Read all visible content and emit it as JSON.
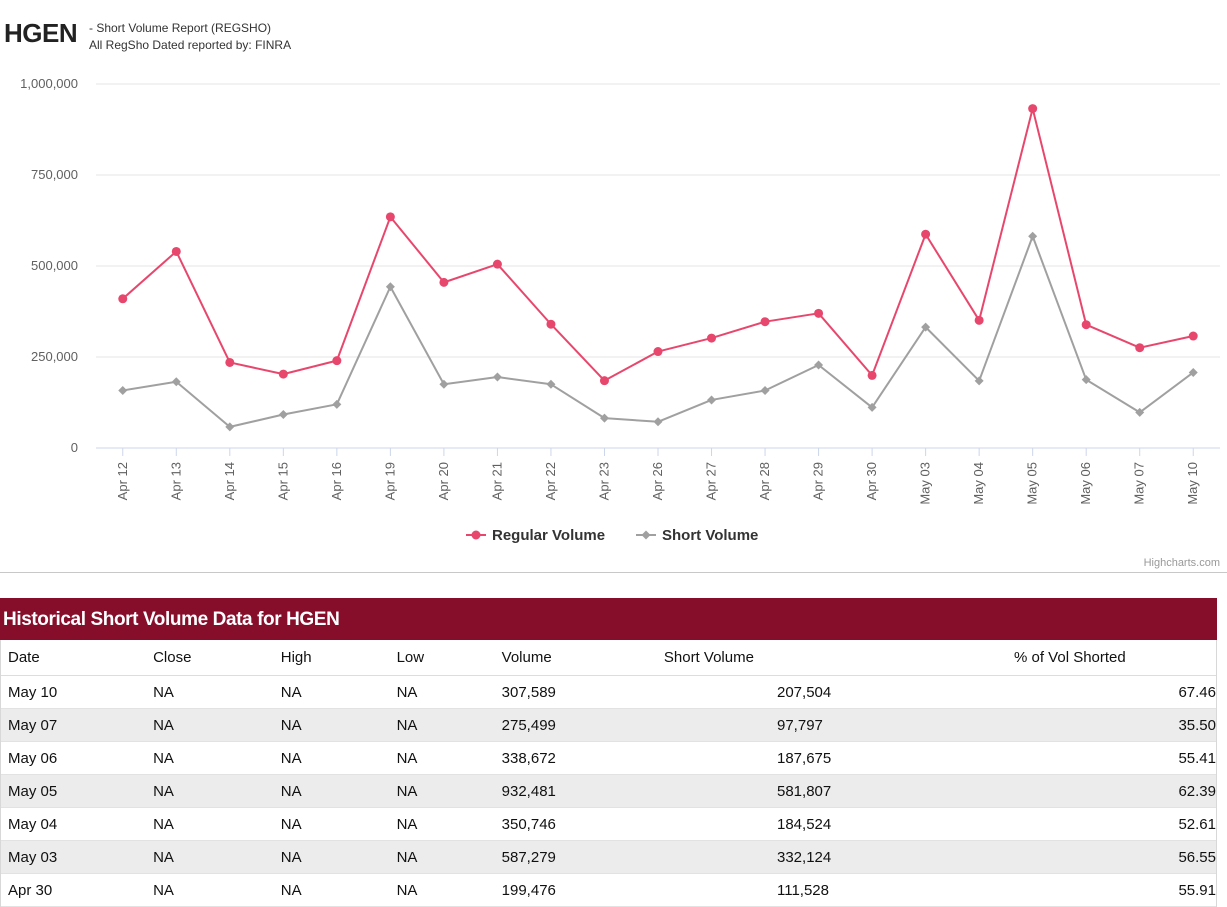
{
  "header": {
    "ticker": "HGEN",
    "subtitle_line1": "- Short Volume Report  (REGSHO)",
    "subtitle_line2": "All RegSho Dated reported by: FINRA"
  },
  "colors": {
    "regular": "#e8476d",
    "short": "#a0a0a0",
    "table_header_bg": "#870e2b"
  },
  "chart_data": {
    "type": "line",
    "categories": [
      "Apr 12",
      "Apr 13",
      "Apr 14",
      "Apr 15",
      "Apr 16",
      "Apr 19",
      "Apr 20",
      "Apr 21",
      "Apr 22",
      "Apr 23",
      "Apr 26",
      "Apr 27",
      "Apr 28",
      "Apr 29",
      "Apr 30",
      "May 03",
      "May 04",
      "May 05",
      "May 06",
      "May 07",
      "May 10"
    ],
    "series": [
      {
        "name": "Regular Volume",
        "marker": "circle",
        "values": [
          410000,
          540000,
          235000,
          203000,
          240000,
          635000,
          455000,
          505000,
          340000,
          185000,
          265000,
          302000,
          347000,
          370000,
          199476,
          587279,
          350746,
          932481,
          338672,
          275499,
          307589
        ]
      },
      {
        "name": "Short Volume",
        "marker": "diamond",
        "values": [
          158000,
          182000,
          58000,
          92000,
          120000,
          443000,
          175000,
          195000,
          175000,
          82000,
          72000,
          132000,
          158000,
          228000,
          111528,
          332124,
          184524,
          581807,
          187675,
          97797,
          207504
        ]
      }
    ],
    "ylim": [
      0,
      1000000
    ],
    "yticks": [
      0,
      250000,
      500000,
      750000,
      1000000
    ],
    "ytick_labels": [
      "0",
      "250,000",
      "500,000",
      "750,000",
      "1,000,000"
    ],
    "legend_position": "bottom-center",
    "credit": "Highcharts.com",
    "grid": true
  },
  "table": {
    "title": "Historical Short Volume Data for HGEN",
    "headers": {
      "date": "Date",
      "close": "Close",
      "high": "High",
      "low": "Low",
      "volume": "Volume",
      "short_volume": "Short Volume",
      "pct": "% of Vol Shorted"
    },
    "rows": [
      {
        "date": "May 10",
        "close": "NA",
        "high": "NA",
        "low": "NA",
        "volume": "307,589",
        "short_volume": "207,504",
        "pct": "67.46"
      },
      {
        "date": "May 07",
        "close": "NA",
        "high": "NA",
        "low": "NA",
        "volume": "275,499",
        "short_volume": "97,797",
        "pct": "35.50"
      },
      {
        "date": "May 06",
        "close": "NA",
        "high": "NA",
        "low": "NA",
        "volume": "338,672",
        "short_volume": "187,675",
        "pct": "55.41"
      },
      {
        "date": "May 05",
        "close": "NA",
        "high": "NA",
        "low": "NA",
        "volume": "932,481",
        "short_volume": "581,807",
        "pct": "62.39"
      },
      {
        "date": "May 04",
        "close": "NA",
        "high": "NA",
        "low": "NA",
        "volume": "350,746",
        "short_volume": "184,524",
        "pct": "52.61"
      },
      {
        "date": "May 03",
        "close": "NA",
        "high": "NA",
        "low": "NA",
        "volume": "587,279",
        "short_volume": "332,124",
        "pct": "56.55"
      },
      {
        "date": "Apr 30",
        "close": "NA",
        "high": "NA",
        "low": "NA",
        "volume": "199,476",
        "short_volume": "111,528",
        "pct": "55.91"
      }
    ]
  }
}
